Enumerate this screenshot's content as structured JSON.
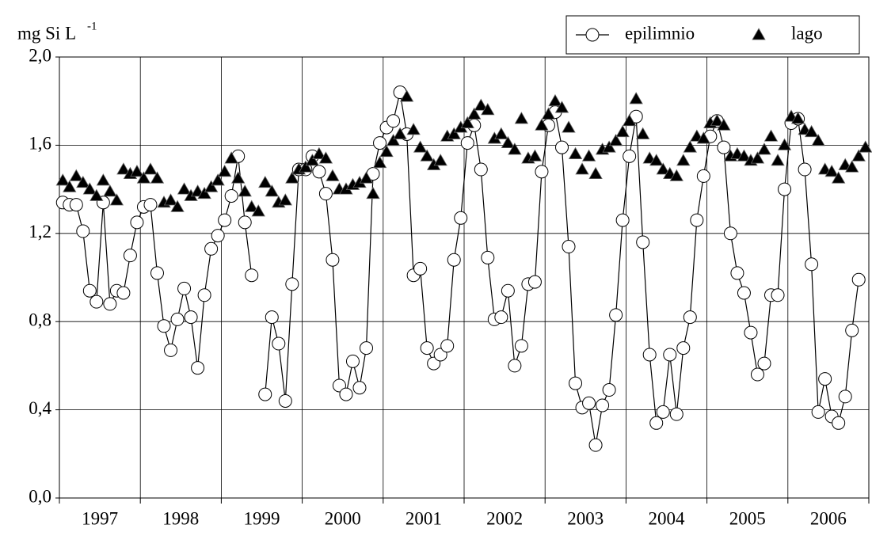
{
  "chart_data": {
    "type": "line",
    "y_label": "mg Si L",
    "y_label_superscript": "-1",
    "categories": [
      null,
      null,
      null,
      null,
      null,
      null,
      "1997",
      null,
      null,
      null,
      null,
      null,
      null,
      null,
      null,
      null,
      null,
      null,
      "1998",
      null,
      null,
      null,
      null,
      null,
      null,
      null,
      null,
      null,
      null,
      null,
      "1999",
      null,
      null,
      null,
      null,
      null,
      null,
      null,
      null,
      null,
      null,
      null,
      "2000",
      null,
      null,
      null,
      null,
      null,
      null,
      null,
      null,
      null,
      null,
      null,
      "2001",
      null,
      null,
      null,
      null,
      null,
      null,
      null,
      null,
      null,
      null,
      null,
      "2002",
      null,
      null,
      null,
      null,
      null,
      null,
      null,
      null,
      null,
      null,
      null,
      "2003",
      null,
      null,
      null,
      null,
      null,
      null,
      null,
      null,
      null,
      null,
      null,
      "2004",
      null,
      null,
      null,
      null,
      null,
      null,
      null,
      null,
      null,
      null,
      null,
      "2005",
      null,
      null,
      null,
      null,
      null,
      null,
      null,
      null,
      null,
      null,
      null,
      "2006",
      null,
      null,
      null,
      null,
      null
    ],
    "series": [
      {
        "name": "epilimnio",
        "color": "#000000",
        "marker": "circle",
        "line": true,
        "values": [
          1.34,
          1.33,
          1.33,
          1.21,
          0.94,
          0.89,
          1.34,
          0.88,
          0.94,
          0.93,
          1.1,
          1.25,
          1.32,
          1.33,
          1.02,
          0.78,
          0.67,
          0.81,
          0.95,
          0.82,
          0.59,
          0.92,
          1.13,
          1.19,
          1.26,
          1.37,
          1.55,
          1.25,
          1.01,
          null,
          0.47,
          0.82,
          0.7,
          0.44,
          0.97,
          1.49,
          1.49,
          1.55,
          1.48,
          1.38,
          1.08,
          0.51,
          0.47,
          0.62,
          0.5,
          0.68,
          1.47,
          1.61,
          1.68,
          1.71,
          1.84,
          1.65,
          1.01,
          1.04,
          0.68,
          0.61,
          0.65,
          0.69,
          1.08,
          1.27,
          1.61,
          1.69,
          1.49,
          1.09,
          0.81,
          0.82,
          0.94,
          0.6,
          0.69,
          0.97,
          0.98,
          1.48,
          1.69,
          1.75,
          1.59,
          1.14,
          0.52,
          0.41,
          0.43,
          0.24,
          0.42,
          0.49,
          0.83,
          1.26,
          1.55,
          1.73,
          1.16,
          0.65,
          0.34,
          0.39,
          0.65,
          0.38,
          0.68,
          0.82,
          1.26,
          1.46,
          1.64,
          1.71,
          1.59,
          1.2,
          1.02,
          0.93,
          0.75,
          0.56,
          0.61,
          0.92,
          0.92,
          1.4,
          1.7,
          1.72,
          1.49,
          1.06,
          0.39,
          0.54,
          0.37,
          0.34,
          0.46,
          0.76,
          0.99,
          null
        ]
      },
      {
        "name": "lago",
        "color": "#000000",
        "marker": "triangle",
        "line": false,
        "values": [
          1.44,
          1.41,
          1.46,
          1.43,
          1.4,
          1.37,
          1.44,
          1.39,
          1.35,
          1.49,
          1.47,
          1.48,
          1.45,
          1.49,
          1.45,
          1.34,
          1.35,
          1.32,
          1.4,
          1.37,
          1.39,
          1.38,
          1.41,
          1.44,
          1.48,
          1.54,
          1.45,
          1.39,
          1.32,
          1.3,
          1.43,
          1.39,
          1.34,
          1.35,
          1.45,
          1.49,
          1.5,
          1.53,
          1.56,
          1.54,
          1.46,
          1.4,
          1.4,
          1.42,
          1.43,
          1.45,
          1.38,
          1.52,
          1.57,
          1.62,
          1.65,
          1.82,
          1.67,
          1.59,
          1.55,
          1.51,
          1.53,
          1.64,
          1.65,
          1.68,
          1.7,
          1.74,
          1.78,
          1.76,
          1.63,
          1.65,
          1.61,
          1.58,
          1.72,
          1.54,
          1.55,
          1.69,
          1.74,
          1.8,
          1.77,
          1.68,
          1.56,
          1.49,
          1.55,
          1.47,
          1.58,
          1.59,
          1.62,
          1.66,
          1.71,
          1.81,
          1.65,
          1.54,
          1.53,
          1.49,
          1.47,
          1.46,
          1.53,
          1.59,
          1.64,
          1.63,
          1.7,
          1.71,
          1.69,
          1.55,
          1.56,
          1.55,
          1.53,
          1.54,
          1.58,
          1.64,
          1.53,
          1.6,
          1.73,
          1.72,
          1.67,
          1.66,
          1.62,
          1.49,
          1.48,
          1.45,
          1.51,
          1.5,
          1.55,
          1.59
        ]
      }
    ],
    "ylim": [
      0,
      2
    ],
    "yticks": [
      {
        "value": 0,
        "label": "0,0"
      },
      {
        "value": 0.4,
        "label": "0,4"
      },
      {
        "value": 0.8,
        "label": "0,8"
      },
      {
        "value": 1.2,
        "label": "1,2"
      },
      {
        "value": 1.6,
        "label": "1,6"
      },
      {
        "value": 2,
        "label": "2,0"
      }
    ],
    "grid": true,
    "legend": "top-right"
  }
}
